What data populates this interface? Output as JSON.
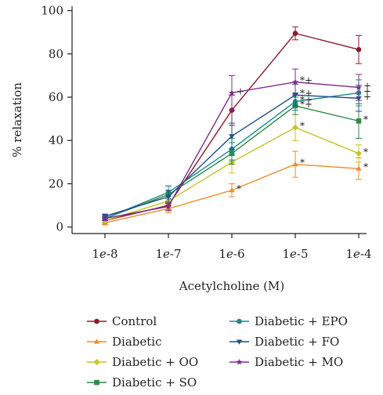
{
  "chart_data": {
    "type": "line",
    "xlabel": "Acetylcholine (M)",
    "ylabel": "% relaxation",
    "categories": [
      "1e-8",
      "1e-7",
      "1e-6",
      "1e-5",
      "1e-4"
    ],
    "category_parts": [
      {
        "base": "1",
        "e": "e",
        "exp": "-8"
      },
      {
        "base": "1",
        "e": "e",
        "exp": "-7"
      },
      {
        "base": "1",
        "e": "e",
        "exp": "-6"
      },
      {
        "base": "1",
        "e": "e",
        "exp": "-5"
      },
      {
        "base": "1",
        "e": "e",
        "exp": "-4"
      }
    ],
    "ylim": [
      -3,
      102
    ],
    "yticks": [
      0,
      20,
      40,
      60,
      80,
      100
    ],
    "legend_position": "bottom",
    "series": [
      {
        "name": "Control",
        "color": "#8b1a2b",
        "marker": "circle",
        "values": [
          3,
          10,
          54,
          89.5,
          82
        ],
        "errors": [
          1,
          2,
          7,
          3,
          6.5
        ],
        "annotations": [
          "",
          "",
          "",
          "",
          ""
        ]
      },
      {
        "name": "Diabetic",
        "color": "#f08a2a",
        "marker": "triangle-up",
        "values": [
          2,
          8.5,
          17,
          29,
          27
        ],
        "errors": [
          1,
          2,
          3,
          6,
          5
        ],
        "annotations": [
          "",
          "",
          "*",
          "*",
          "*"
        ]
      },
      {
        "name": "Diabetic + OO",
        "color": "#c4c42c",
        "marker": "diamond",
        "values": [
          3,
          12,
          30,
          46,
          34
        ],
        "errors": [
          1,
          3,
          5,
          6,
          4
        ],
        "annotations": [
          "",
          "",
          "",
          "*",
          "*"
        ]
      },
      {
        "name": "Diabetic + SO",
        "color": "#2e8b45",
        "marker": "square",
        "values": [
          4,
          15,
          34,
          56,
          49
        ],
        "errors": [
          1,
          4,
          5,
          4,
          8
        ],
        "annotations": [
          "",
          "",
          "",
          "*+",
          "*"
        ]
      },
      {
        "name": "Diabetic + EPO",
        "color": "#1b8a8c",
        "marker": "circle",
        "values": [
          4,
          16,
          36,
          58,
          62
        ],
        "errors": [
          1,
          3,
          5,
          4,
          6
        ],
        "annotations": [
          "",
          "",
          "",
          "*+",
          "+"
        ]
      },
      {
        "name": "Diabetic + FO",
        "color": "#1f4e8c",
        "marker": "triangle-down",
        "values": [
          5,
          14,
          42,
          61,
          59.5
        ],
        "errors": [
          1,
          3,
          6,
          5,
          6
        ],
        "annotations": [
          "",
          "",
          "",
          "*+",
          "+"
        ]
      },
      {
        "name": "Diabetic + MO",
        "color": "#7b2d8e",
        "marker": "star",
        "values": [
          4,
          9.5,
          62,
          67,
          64.5
        ],
        "errors": [
          1,
          2,
          8,
          6,
          6
        ],
        "annotations": [
          "",
          "",
          "+",
          "*+",
          "+"
        ]
      }
    ]
  }
}
